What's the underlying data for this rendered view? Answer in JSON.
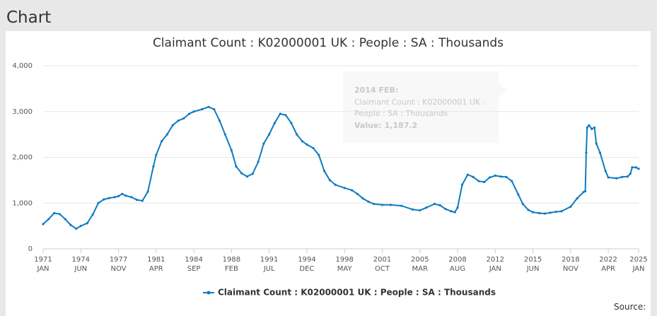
{
  "header": {
    "title": "Chart"
  },
  "chart_data": {
    "type": "line",
    "title": "Claimant Count : K02000001 UK : People : SA : Thousands",
    "x": [
      "1971-01",
      "1971-07",
      "1972-01",
      "1972-07",
      "1973-01",
      "1973-07",
      "1974-01",
      "1974-06",
      "1975-01",
      "1975-07",
      "1976-01",
      "1976-07",
      "1977-01",
      "1977-07",
      "1977-11",
      "1978-03",
      "1978-07",
      "1979-01",
      "1979-07",
      "1980-01",
      "1980-07",
      "1981-01",
      "1981-04",
      "1981-10",
      "1982-04",
      "1982-10",
      "1983-04",
      "1983-10",
      "1984-04",
      "1984-09",
      "1985-06",
      "1986-01",
      "1986-07",
      "1987-01",
      "1987-07",
      "1988-02",
      "1988-07",
      "1989-01",
      "1989-07",
      "1990-01",
      "1990-07",
      "1991-01",
      "1991-07",
      "1992-01",
      "1992-07",
      "1993-01",
      "1993-07",
      "1994-01",
      "1994-07",
      "1994-12",
      "1995-07",
      "1996-01",
      "1996-07",
      "1997-01",
      "1997-07",
      "1998-05",
      "1999-01",
      "1999-07",
      "2000-01",
      "2000-07",
      "2001-01",
      "2001-10",
      "2002-07",
      "2003-07",
      "2004-07",
      "2005-03",
      "2005-10",
      "2006-07",
      "2007-01",
      "2007-07",
      "2008-01",
      "2008-05",
      "2008-08",
      "2009-01",
      "2009-07",
      "2010-01",
      "2010-07",
      "2011-01",
      "2011-07",
      "2012-01",
      "2012-07",
      "2013-01",
      "2013-07",
      "2014-02",
      "2014-07",
      "2015-01",
      "2015-06",
      "2016-01",
      "2016-07",
      "2017-01",
      "2017-07",
      "2018-01",
      "2018-11",
      "2019-06",
      "2020-01",
      "2020-03",
      "2020-04",
      "2020-05",
      "2020-07",
      "2020-10",
      "2021-01",
      "2021-03",
      "2021-07",
      "2022-01",
      "2022-04",
      "2023-01",
      "2023-07",
      "2024-01",
      "2024-04",
      "2024-06",
      "2024-10",
      "2025-01"
    ],
    "series": [
      {
        "name": "Claimant Count : K02000001 UK : People : SA : Thousands",
        "color": "#0f7bc0",
        "values": [
          540,
          650,
          780,
          760,
          650,
          520,
          440,
          500,
          560,
          750,
          1000,
          1080,
          1110,
          1130,
          1150,
          1200,
          1160,
          1130,
          1070,
          1050,
          1250,
          1800,
          2050,
          2350,
          2500,
          2700,
          2800,
          2850,
          2950,
          3000,
          3050,
          3100,
          3050,
          2800,
          2500,
          2150,
          1800,
          1650,
          1580,
          1640,
          1900,
          2300,
          2500,
          2750,
          2950,
          2920,
          2750,
          2500,
          2350,
          2280,
          2200,
          2050,
          1700,
          1500,
          1400,
          1330,
          1280,
          1200,
          1100,
          1030,
          980,
          960,
          960,
          940,
          860,
          840,
          900,
          980,
          950,
          870,
          820,
          800,
          900,
          1400,
          1620,
          1570,
          1480,
          1460,
          1560,
          1600,
          1580,
          1570,
          1480,
          1187.2,
          980,
          850,
          800,
          780,
          770,
          790,
          810,
          820,
          920,
          1100,
          1240,
          1260,
          2100,
          2650,
          2700,
          2620,
          2650,
          2300,
          2100,
          1700,
          1560,
          1540,
          1570,
          1580,
          1640,
          1780,
          1780,
          1750
        ]
      }
    ],
    "xlim": [
      "1971-01",
      "2025-01"
    ],
    "xticks": [
      {
        "value": "1971-01",
        "label": "1971\nJAN"
      },
      {
        "value": "1974-06",
        "label": "1974\nJUN"
      },
      {
        "value": "1977-11",
        "label": "1977\nNOV"
      },
      {
        "value": "1981-04",
        "label": "1981\nAPR"
      },
      {
        "value": "1984-09",
        "label": "1984\nSEP"
      },
      {
        "value": "1988-02",
        "label": "1988\nFEB"
      },
      {
        "value": "1991-07",
        "label": "1991\nJUL"
      },
      {
        "value": "1994-12",
        "label": "1994\nDEC"
      },
      {
        "value": "1998-05",
        "label": "1998\nMAY"
      },
      {
        "value": "2001-10",
        "label": "2001\nOCT"
      },
      {
        "value": "2005-03",
        "label": "2005\nMAR"
      },
      {
        "value": "2008-08",
        "label": "2008\nAUG"
      },
      {
        "value": "2012-01",
        "label": "2012\nJAN"
      },
      {
        "value": "2015-06",
        "label": "2015\nJUN"
      },
      {
        "value": "2018-11",
        "label": "2018\nNOV"
      },
      {
        "value": "2022-04",
        "label": "2022\nAPR"
      },
      {
        "value": "2025-01",
        "label": "2025\nJAN"
      }
    ],
    "ylim": [
      0,
      4000
    ],
    "yticks": [
      0,
      {
        "value": 1000,
        "label": "1,000"
      },
      {
        "value": 2000,
        "label": "2,000"
      },
      {
        "value": 3000,
        "label": "3,000"
      },
      {
        "value": 4000,
        "label": "4,000"
      }
    ],
    "grid": true,
    "legend": "bottom",
    "tooltip": {
      "title": "2014 FEB:",
      "series": "Claimant Count : K02000001 UK : People : SA : Thousands",
      "value": "Value: 1,187.2"
    },
    "source": "Source:"
  }
}
